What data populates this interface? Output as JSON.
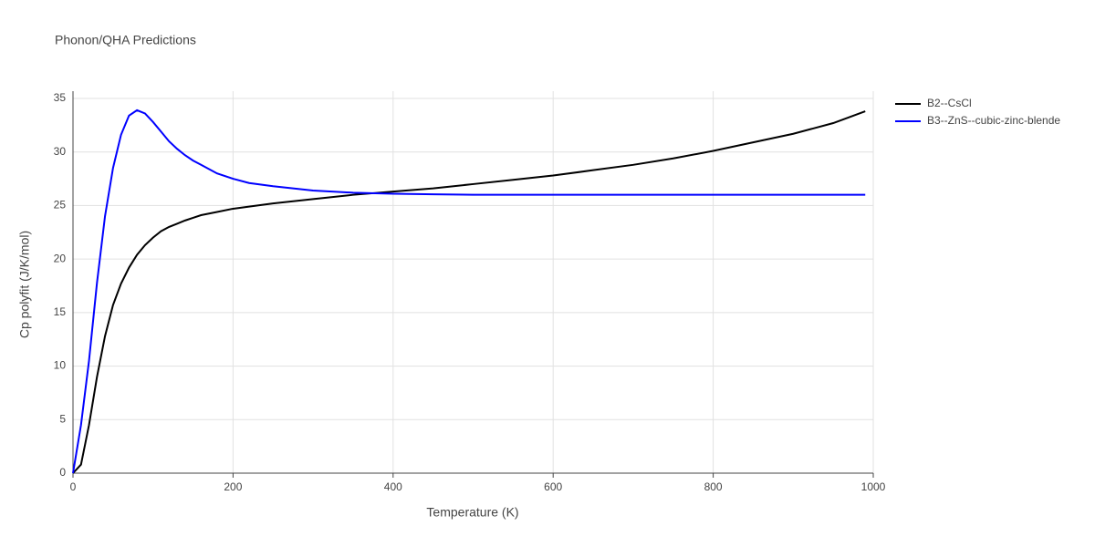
{
  "chart_data": {
    "type": "line",
    "title": "Phonon/QHA Predictions",
    "x_label": "Temperature (K)",
    "y_label": "Cp polyfit (J/K/mol)",
    "x": [
      0,
      10,
      20,
      30,
      40,
      50,
      60,
      70,
      80,
      90,
      100,
      110,
      120,
      130,
      140,
      150,
      160,
      180,
      200,
      220,
      250,
      300,
      350,
      400,
      450,
      500,
      550,
      600,
      650,
      700,
      750,
      800,
      850,
      900,
      950,
      990
    ],
    "series": [
      {
        "name": "B2--CsCl",
        "color": "#000000",
        "values": [
          0,
          0.8,
          4.5,
          9,
          12.8,
          15.7,
          17.7,
          19.2,
          20.4,
          21.3,
          22,
          22.6,
          23,
          23.3,
          23.6,
          23.85,
          24.1,
          24.4,
          24.7,
          24.9,
          25.2,
          25.6,
          26,
          26.3,
          26.6,
          27,
          27.4,
          27.8,
          28.3,
          28.8,
          29.4,
          30.1,
          30.9,
          31.7,
          32.7,
          33.8
        ]
      },
      {
        "name": "B3--ZnS--cubic-zinc-blende",
        "color": "#0000ff",
        "values": [
          0,
          4.5,
          10.5,
          17.8,
          24,
          28.5,
          31.6,
          33.4,
          33.9,
          33.6,
          32.8,
          31.9,
          31,
          30.3,
          29.7,
          29.2,
          28.8,
          28,
          27.5,
          27.1,
          26.8,
          26.4,
          26.2,
          26.1,
          26.05,
          26,
          26,
          26,
          26,
          26,
          26,
          26,
          26,
          26,
          26,
          26
        ]
      }
    ],
    "xlim": [
      0,
      1000
    ],
    "xticks": [
      0,
      200,
      400,
      600,
      800,
      1000
    ],
    "ylim": [
      0,
      35
    ],
    "yticks": [
      0,
      5,
      10,
      15,
      20,
      25,
      30,
      35
    ],
    "grid": true,
    "legend": "top-right"
  }
}
